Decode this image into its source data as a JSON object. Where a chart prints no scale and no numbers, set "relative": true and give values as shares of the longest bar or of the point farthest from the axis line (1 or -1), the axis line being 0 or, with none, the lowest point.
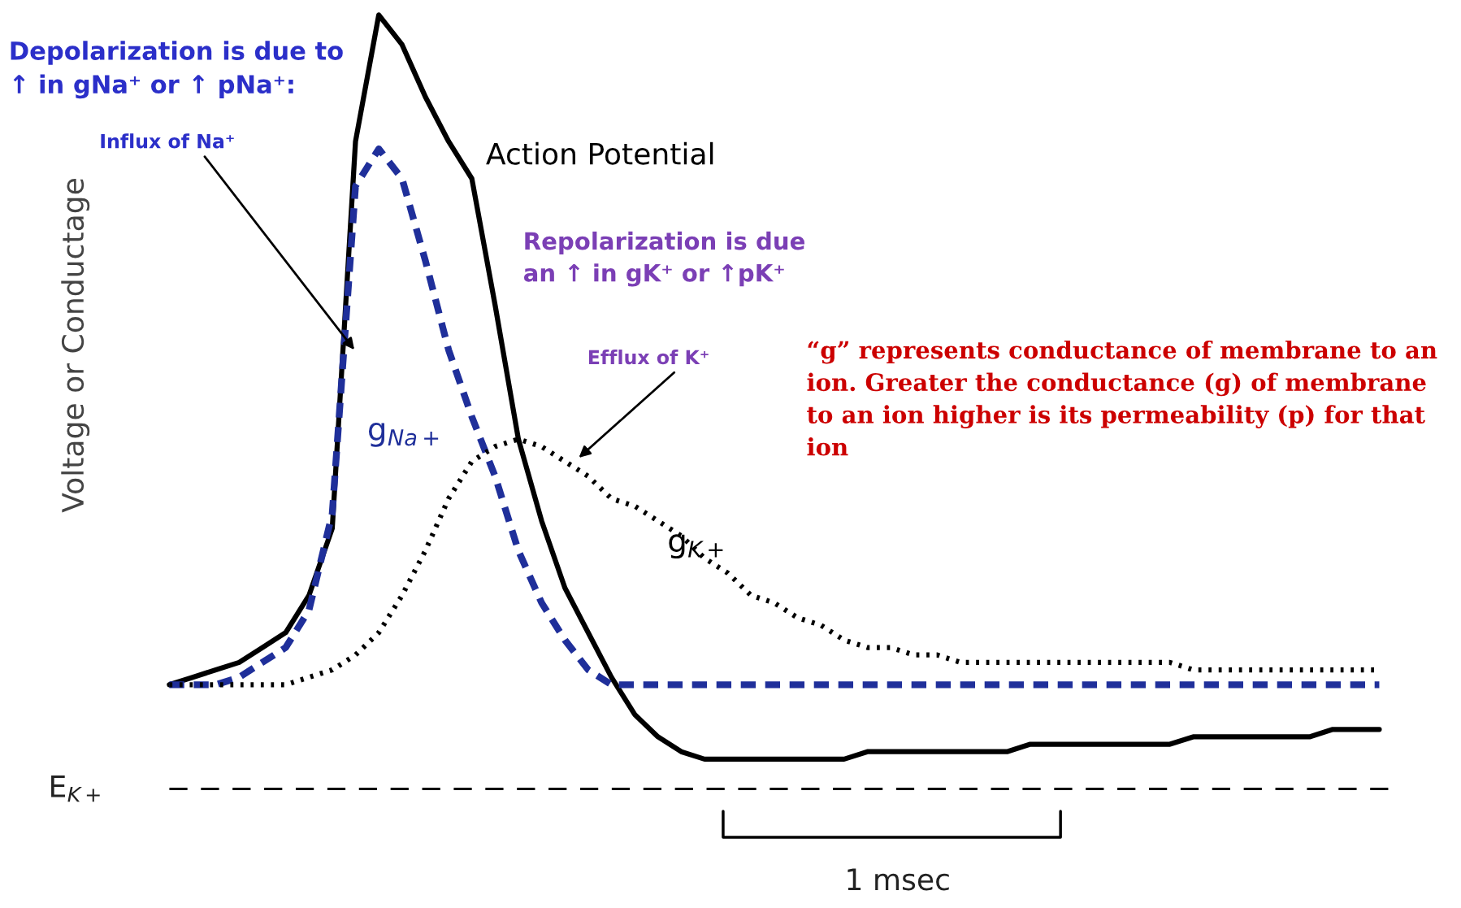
{
  "chart_data": {
    "type": "line",
    "relative": true,
    "ylabel": "Voltage or Conductage",
    "legend": false,
    "grid": false,
    "marker": "none",
    "categories": [
      null,
      null,
      null,
      null,
      null,
      null,
      null,
      null,
      null,
      null,
      null,
      null,
      null,
      null,
      null,
      null,
      null,
      null,
      null,
      null,
      null,
      null,
      null,
      null,
      null,
      null,
      null,
      null,
      null,
      null,
      null,
      null,
      null,
      null,
      null,
      null,
      null,
      null,
      null,
      null,
      null,
      null,
      null,
      null,
      null,
      null,
      null,
      null,
      null,
      null,
      null,
      null,
      null
    ],
    "series": [
      {
        "name": "Action Potential",
        "color": "#000000",
        "line_style": "solid",
        "values": [
          0.1,
          0.11,
          0.12,
          0.13,
          0.15,
          0.17,
          0.22,
          0.31,
          0.83,
          1.0,
          0.96,
          0.89,
          0.83,
          0.78,
          0.61,
          0.43,
          0.32,
          0.23,
          0.17,
          0.11,
          0.06,
          0.03,
          0.01,
          0.0,
          0.0,
          0.0,
          0.0,
          0.0,
          0.0,
          0.0,
          0.01,
          0.01,
          0.01,
          0.01,
          0.01,
          0.01,
          0.01,
          0.02,
          0.02,
          0.02,
          0.02,
          0.02,
          0.02,
          0.02,
          0.03,
          0.03,
          0.03,
          0.03,
          0.03,
          0.03,
          0.04,
          0.04,
          0.04
        ]
      },
      {
        "name": "g$_{Na+}$",
        "color": "#1f2f9a",
        "line_style": "dashed",
        "values": [
          0.1,
          0.1,
          0.1,
          0.11,
          0.13,
          0.15,
          0.2,
          0.33,
          0.77,
          0.82,
          0.78,
          0.67,
          0.55,
          0.46,
          0.38,
          0.28,
          0.21,
          0.16,
          0.12,
          0.1,
          0.1,
          0.1,
          0.1,
          0.1,
          0.1,
          0.1,
          0.1,
          0.1,
          0.1,
          0.1,
          0.1,
          0.1,
          0.1,
          0.1,
          0.1,
          0.1,
          0.1,
          0.1,
          0.1,
          0.1,
          0.1,
          0.1,
          0.1,
          0.1,
          0.1,
          0.1,
          0.1,
          0.1,
          0.1,
          0.1,
          0.1,
          0.1,
          0.1
        ]
      },
      {
        "name": "g$_{K+}$",
        "color": "#000000",
        "line_style": "dotted",
        "values": [
          0.1,
          0.1,
          0.1,
          0.1,
          0.1,
          0.1,
          0.11,
          0.12,
          0.14,
          0.17,
          0.22,
          0.28,
          0.35,
          0.4,
          0.42,
          0.43,
          0.42,
          0.4,
          0.38,
          0.35,
          0.34,
          0.32,
          0.3,
          0.27,
          0.25,
          0.22,
          0.21,
          0.19,
          0.18,
          0.16,
          0.15,
          0.15,
          0.14,
          0.14,
          0.13,
          0.13,
          0.13,
          0.13,
          0.13,
          0.13,
          0.13,
          0.13,
          0.13,
          0.13,
          0.12,
          0.12,
          0.12,
          0.12,
          0.12,
          0.12,
          0.12,
          0.12,
          0.12
        ]
      }
    ],
    "ref_lines": [
      {
        "axis": "y",
        "value": -0.04,
        "label": "E$_{K+}$",
        "color": "#000000",
        "line_style": "dashed"
      }
    ],
    "annotations": [
      "Depolarization is due to\n↑ in gNa⁺ or ↑ pNa⁺:",
      "Influx of Na⁺",
      "Repolarization is due\nan ↑ in gK⁺ or ↑pK⁺",
      "Efflux of K⁺",
      "“g” represents conductance of membrane to an ion. Greater the conductance (g) of membrane to an ion higher is its permeability (p) for that ion",
      "1 msec"
    ]
  }
}
